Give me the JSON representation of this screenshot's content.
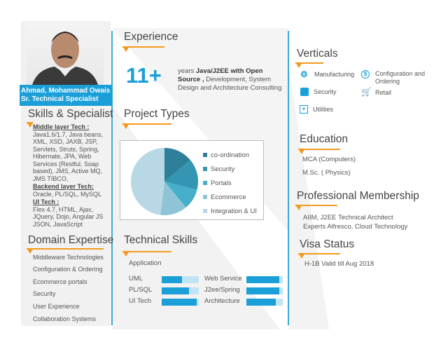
{
  "profile": {
    "name": "Ahmad, Mohammad Owais",
    "title": "Sr. Technical Specialist"
  },
  "skills": {
    "heading": "Skills & Specialist",
    "middle_label": "Middle layer Tech :",
    "middle_lines": [
      "Java1.6/1.7, Java beans,",
      "XML, XSD, JAXB, JSP,",
      "Servlets, Struts, Spring,",
      "Hibernate, JPA, Web",
      "Services (Restful, Soap",
      "based), JMS, Active MQ,",
      "JMS TIBCO,"
    ],
    "backend_label": "Backend layer Tech:",
    "backend": "Oracle, PL/SQL, MySQL",
    "ui_label": "UI Tech :",
    "ui_lines": [
      "Flex 4.7, HTML, Ajax,",
      "JQuery, Dojo, Angular JS",
      "JSON, JavaScript"
    ]
  },
  "domain": {
    "heading": "Domain Expertise",
    "items": [
      "Middleware Technologies",
      "Configuration & Ordering",
      "Ecommerce portals",
      "Security",
      "User Experience",
      "Collaboration Systems"
    ]
  },
  "experience": {
    "heading": "Experience",
    "years": "11+",
    "desc_pre": "years ",
    "desc_bold": "Java/J2EE with Open Source ,",
    "desc_post": " Development, System Design and Architecture Consulting"
  },
  "project_types": {
    "heading": "Project Types"
  },
  "chart_data": {
    "type": "pie",
    "categories": [
      "co-ordination",
      "Security",
      "Portals",
      "Ecommerce",
      "Integration & UI"
    ],
    "values": [
      14,
      15,
      10,
      13,
      48
    ],
    "colors": [
      "#2e7f99",
      "#3596b3",
      "#47afcb",
      "#8fc4d6",
      "#b9d8e5"
    ],
    "legend": "right"
  },
  "technical": {
    "heading": "Technical Skills",
    "subheading": "Application",
    "skills": [
      {
        "name": "UML",
        "level": 0.55
      },
      {
        "name": "PL/SQL",
        "level": 0.73
      },
      {
        "name": "UI Tech",
        "level": 0.95
      },
      {
        "name": "Web Service",
        "level": 0.9
      },
      {
        "name": "J2ee/Spring",
        "level": 0.9
      },
      {
        "name": "Architecture",
        "level": 0.8
      }
    ]
  },
  "verticals": {
    "heading": "Verticals",
    "items": [
      {
        "label": "Manufacturing",
        "icon": "gears-icon"
      },
      {
        "label": "Configuration and Ordering",
        "icon": "dollar-icon"
      },
      {
        "label": "Security",
        "icon": "building-icon"
      },
      {
        "label": "Retail",
        "icon": "cart-icon"
      },
      {
        "label": "Utilities",
        "icon": "plus-box-icon"
      }
    ]
  },
  "education": {
    "heading": "Education",
    "items": [
      "MCA  (Computers)",
      "M.Sc. ( Physics)"
    ]
  },
  "membership": {
    "heading": "Professional Membership",
    "lines": [
      "AIIM, J2EE Technical Architect",
      "Experts Alfresco, Cloud Technology"
    ]
  },
  "visa": {
    "heading": "Visa Status",
    "text": "H-1B Valid till Aug 2018"
  }
}
